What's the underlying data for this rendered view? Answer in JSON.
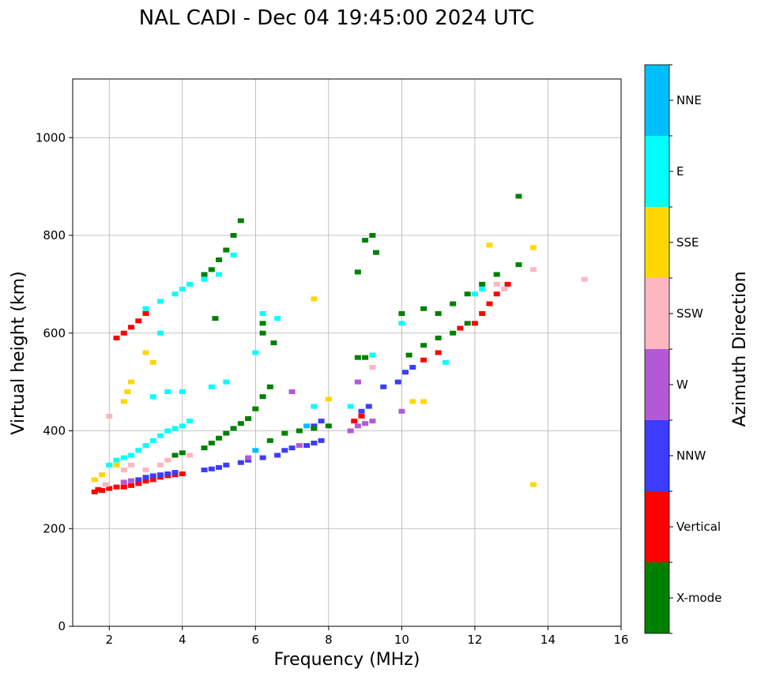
{
  "chart_data": {
    "type": "scatter",
    "title": "NAL CADI - Dec 04 19:45:00 2024 UTC",
    "xlabel": "Frequency (MHz)",
    "ylabel": "Virtual height (km)",
    "xlim": [
      1,
      16
    ],
    "ylim": [
      0,
      1120
    ],
    "xticks": [
      2,
      4,
      6,
      8,
      10,
      12,
      14,
      16
    ],
    "yticks": [
      0,
      200,
      400,
      600,
      800,
      1000
    ],
    "grid": true,
    "colorbar": {
      "label": "Azimuth Direction",
      "categories": [
        {
          "name": "X-mode",
          "color": "#008000"
        },
        {
          "name": "Vertical",
          "color": "#ff0000"
        },
        {
          "name": "NNW",
          "color": "#3c3cff"
        },
        {
          "name": "W",
          "color": "#b459d6"
        },
        {
          "name": "SSW",
          "color": "#ffb6c1"
        },
        {
          "name": "SSE",
          "color": "#ffd700"
        },
        {
          "name": "E",
          "color": "#00ffff"
        },
        {
          "name": "NNE",
          "color": "#00bfff"
        }
      ]
    },
    "series": [
      {
        "name": "Vertical",
        "points": [
          [
            1.6,
            275
          ],
          [
            1.7,
            280
          ],
          [
            1.8,
            278
          ],
          [
            2.0,
            282
          ],
          [
            2.2,
            285
          ],
          [
            2.4,
            285
          ],
          [
            2.6,
            288
          ],
          [
            2.8,
            292
          ],
          [
            3.0,
            297
          ],
          [
            3.2,
            300
          ],
          [
            3.4,
            305
          ],
          [
            3.6,
            308
          ],
          [
            3.8,
            310
          ],
          [
            4.0,
            312
          ],
          [
            2.2,
            590
          ],
          [
            2.4,
            600
          ],
          [
            2.6,
            612
          ],
          [
            2.8,
            625
          ],
          [
            3.0,
            640
          ],
          [
            8.7,
            420
          ],
          [
            8.9,
            430
          ],
          [
            10.6,
            545
          ],
          [
            11.0,
            560
          ],
          [
            11.6,
            610
          ],
          [
            12.0,
            620
          ],
          [
            12.2,
            640
          ],
          [
            12.4,
            660
          ],
          [
            12.6,
            680
          ],
          [
            12.9,
            700
          ]
        ]
      },
      {
        "name": "NNW",
        "points": [
          [
            2.8,
            300
          ],
          [
            3.0,
            305
          ],
          [
            3.2,
            308
          ],
          [
            3.4,
            310
          ],
          [
            3.6,
            312
          ],
          [
            3.8,
            315
          ],
          [
            4.6,
            320
          ],
          [
            4.8,
            322
          ],
          [
            5.0,
            325
          ],
          [
            5.2,
            330
          ],
          [
            5.6,
            335
          ],
          [
            5.8,
            340
          ],
          [
            6.2,
            345
          ],
          [
            6.6,
            350
          ],
          [
            6.8,
            360
          ],
          [
            7.0,
            365
          ],
          [
            7.4,
            370
          ],
          [
            7.6,
            375
          ],
          [
            7.8,
            380
          ],
          [
            7.6,
            410
          ],
          [
            7.8,
            420
          ],
          [
            8.9,
            440
          ],
          [
            9.1,
            450
          ],
          [
            9.5,
            490
          ],
          [
            9.9,
            500
          ],
          [
            10.1,
            520
          ],
          [
            10.3,
            530
          ]
        ]
      },
      {
        "name": "W",
        "points": [
          [
            2.4,
            295
          ],
          [
            2.6,
            298
          ],
          [
            5.8,
            345
          ],
          [
            7.2,
            370
          ],
          [
            8.6,
            400
          ],
          [
            8.8,
            410
          ],
          [
            9.0,
            415
          ],
          [
            9.2,
            420
          ],
          [
            7.0,
            480
          ],
          [
            8.8,
            500
          ],
          [
            10.0,
            440
          ],
          [
            12.6,
            720
          ]
        ]
      },
      {
        "name": "X-mode",
        "points": [
          [
            3.8,
            350
          ],
          [
            4.0,
            355
          ],
          [
            4.6,
            365
          ],
          [
            4.8,
            375
          ],
          [
            5.0,
            385
          ],
          [
            5.2,
            395
          ],
          [
            5.4,
            405
          ],
          [
            5.6,
            415
          ],
          [
            5.8,
            425
          ],
          [
            6.0,
            445
          ],
          [
            6.2,
            470
          ],
          [
            6.4,
            490
          ],
          [
            4.6,
            720
          ],
          [
            4.8,
            730
          ],
          [
            5.0,
            750
          ],
          [
            5.2,
            770
          ],
          [
            5.4,
            800
          ],
          [
            5.6,
            830
          ],
          [
            6.4,
            380
          ],
          [
            6.8,
            395
          ],
          [
            7.2,
            400
          ],
          [
            7.6,
            405
          ],
          [
            8.0,
            410
          ],
          [
            10.2,
            555
          ],
          [
            10.6,
            575
          ],
          [
            11.0,
            590
          ],
          [
            11.4,
            600
          ],
          [
            11.8,
            620
          ],
          [
            11.4,
            660
          ],
          [
            11.8,
            680
          ],
          [
            12.2,
            700
          ],
          [
            12.6,
            720
          ],
          [
            13.2,
            740
          ],
          [
            13.2,
            880
          ],
          [
            8.8,
            725
          ],
          [
            9.2,
            800
          ],
          [
            9.0,
            790
          ],
          [
            9.3,
            765
          ],
          [
            6.5,
            580
          ],
          [
            6.2,
            600
          ],
          [
            6.2,
            620
          ],
          [
            4.9,
            630
          ],
          [
            8.8,
            550
          ],
          [
            9.0,
            550
          ],
          [
            10.0,
            640
          ],
          [
            10.6,
            650
          ],
          [
            11.0,
            640
          ]
        ]
      },
      {
        "name": "E",
        "points": [
          [
            2.0,
            330
          ],
          [
            2.2,
            340
          ],
          [
            2.4,
            345
          ],
          [
            2.6,
            350
          ],
          [
            2.8,
            360
          ],
          [
            3.0,
            370
          ],
          [
            3.2,
            380
          ],
          [
            3.4,
            390
          ],
          [
            3.6,
            400
          ],
          [
            3.8,
            405
          ],
          [
            4.0,
            410
          ],
          [
            4.2,
            420
          ],
          [
            3.2,
            470
          ],
          [
            3.6,
            480
          ],
          [
            4.0,
            480
          ],
          [
            4.8,
            490
          ],
          [
            5.2,
            500
          ],
          [
            3.0,
            650
          ],
          [
            3.4,
            665
          ],
          [
            3.8,
            680
          ],
          [
            4.0,
            690
          ],
          [
            4.2,
            700
          ],
          [
            4.6,
            710
          ],
          [
            5.0,
            720
          ],
          [
            5.4,
            760
          ],
          [
            6.0,
            560
          ],
          [
            6.2,
            640
          ],
          [
            6.6,
            630
          ],
          [
            8.6,
            450
          ],
          [
            7.6,
            450
          ],
          [
            9.2,
            555
          ],
          [
            10.0,
            620
          ],
          [
            11.2,
            540
          ],
          [
            12.0,
            680
          ],
          [
            12.2,
            690
          ],
          [
            3.4,
            600
          ]
        ]
      },
      {
        "name": "SSW",
        "points": [
          [
            1.9,
            290
          ],
          [
            2.0,
            430
          ],
          [
            2.4,
            320
          ],
          [
            2.6,
            330
          ],
          [
            3.0,
            320
          ],
          [
            3.4,
            330
          ],
          [
            3.6,
            340
          ],
          [
            4.2,
            350
          ],
          [
            9.2,
            530
          ],
          [
            12.6,
            700
          ],
          [
            12.8,
            690
          ],
          [
            13.6,
            730
          ],
          [
            15.0,
            710
          ]
        ]
      },
      {
        "name": "SSE",
        "points": [
          [
            1.6,
            300
          ],
          [
            1.8,
            310
          ],
          [
            2.2,
            330
          ],
          [
            2.4,
            460
          ],
          [
            2.5,
            480
          ],
          [
            2.6,
            500
          ],
          [
            3.2,
            540
          ],
          [
            3.0,
            560
          ],
          [
            7.6,
            670
          ],
          [
            8.0,
            465
          ],
          [
            10.3,
            460
          ],
          [
            10.6,
            460
          ],
          [
            12.4,
            780
          ],
          [
            13.6,
            775
          ],
          [
            13.6,
            290
          ]
        ]
      },
      {
        "name": "NNE",
        "points": [
          [
            6.0,
            360
          ],
          [
            7.4,
            410
          ]
        ]
      }
    ]
  }
}
